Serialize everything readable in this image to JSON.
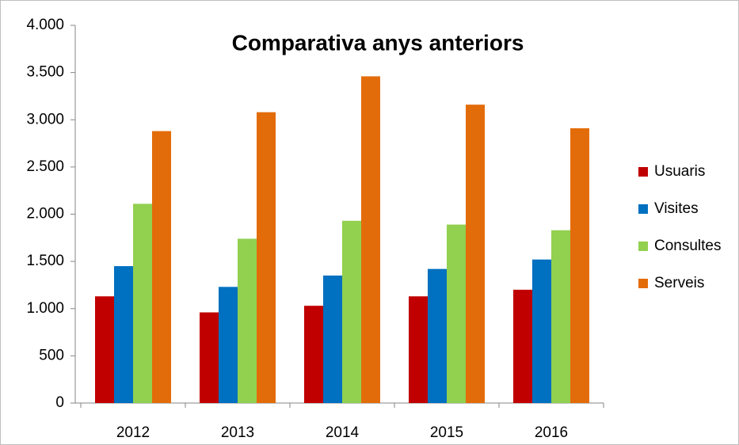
{
  "chart_data": {
    "type": "bar",
    "title": "Comparativa anys anteriors",
    "categories": [
      "2012",
      "2013",
      "2014",
      "2015",
      "2016"
    ],
    "series": [
      {
        "name": "Usuaris",
        "color": "#c00000",
        "values": [
          1130,
          960,
          1030,
          1130,
          1200
        ]
      },
      {
        "name": "Visites",
        "color": "#0070c0",
        "values": [
          1450,
          1230,
          1350,
          1420,
          1520
        ]
      },
      {
        "name": "Consultes",
        "color": "#92d050",
        "values": [
          2110,
          1740,
          1930,
          1890,
          1830
        ]
      },
      {
        "name": "Serveis",
        "color": "#e36c0a",
        "values": [
          2880,
          3080,
          3460,
          3160,
          2910
        ]
      }
    ],
    "ylim": [
      0,
      4000
    ],
    "yticks": [
      {
        "value": 0,
        "label": "0"
      },
      {
        "value": 500,
        "label": "500"
      },
      {
        "value": 1000,
        "label": "1.000"
      },
      {
        "value": 1500,
        "label": "1.500"
      },
      {
        "value": 2000,
        "label": "2.000"
      },
      {
        "value": 2500,
        "label": "2.500"
      },
      {
        "value": 3000,
        "label": "3.000"
      },
      {
        "value": 3500,
        "label": "3.500"
      },
      {
        "value": 4000,
        "label": "4.000"
      }
    ],
    "grid": false,
    "legend": "right"
  }
}
